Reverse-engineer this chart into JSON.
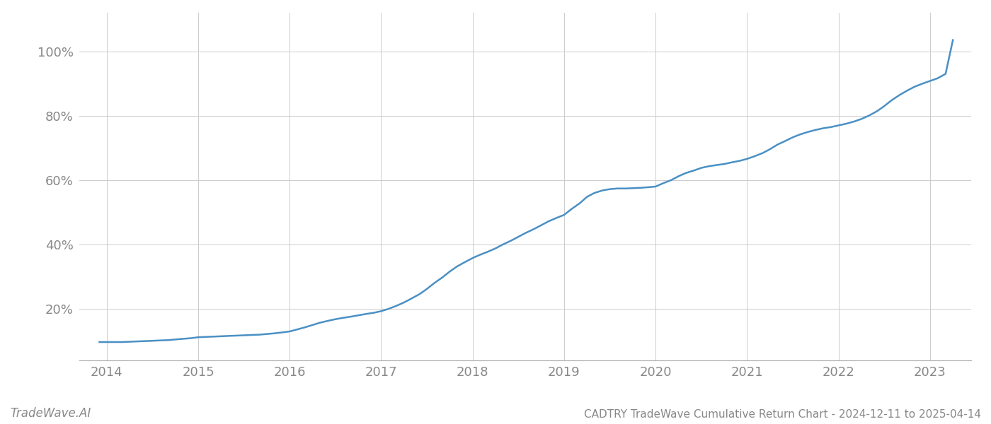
{
  "title": "CADTRY TradeWave Cumulative Return Chart - 2024-12-11 to 2025-04-14",
  "watermark": "TradeWave.AI",
  "line_color": "#4a90c4",
  "background_color": "#ffffff",
  "grid_color": "#cccccc",
  "axis_color": "#888888",
  "x_ticks": [
    2014,
    2015,
    2016,
    2017,
    2018,
    2019,
    2020,
    2021,
    2022,
    2023
  ],
  "y_ticks": [
    0.2,
    0.4,
    0.6,
    0.8,
    1.0
  ],
  "xlim": [
    2013.7,
    2023.45
  ],
  "ylim": [
    0.04,
    1.12
  ],
  "x_data": [
    2013.92,
    2014.0,
    2014.08,
    2014.17,
    2014.25,
    2014.33,
    2014.42,
    2014.5,
    2014.58,
    2014.67,
    2014.75,
    2014.83,
    2014.92,
    2015.0,
    2015.08,
    2015.17,
    2015.25,
    2015.33,
    2015.42,
    2015.5,
    2015.58,
    2015.67,
    2015.75,
    2015.83,
    2015.92,
    2016.0,
    2016.08,
    2016.17,
    2016.25,
    2016.33,
    2016.42,
    2016.5,
    2016.58,
    2016.67,
    2016.75,
    2016.83,
    2016.92,
    2017.0,
    2017.08,
    2017.17,
    2017.25,
    2017.33,
    2017.42,
    2017.5,
    2017.58,
    2017.67,
    2017.75,
    2017.83,
    2017.92,
    2018.0,
    2018.08,
    2018.17,
    2018.25,
    2018.33,
    2018.42,
    2018.5,
    2018.58,
    2018.67,
    2018.75,
    2018.83,
    2018.92,
    2019.0,
    2019.08,
    2019.17,
    2019.25,
    2019.33,
    2019.42,
    2019.5,
    2019.58,
    2019.67,
    2019.75,
    2019.83,
    2019.92,
    2020.0,
    2020.08,
    2020.17,
    2020.25,
    2020.33,
    2020.42,
    2020.5,
    2020.58,
    2020.67,
    2020.75,
    2020.83,
    2020.92,
    2021.0,
    2021.08,
    2021.17,
    2021.25,
    2021.33,
    2021.42,
    2021.5,
    2021.58,
    2021.67,
    2021.75,
    2021.83,
    2021.92,
    2022.0,
    2022.08,
    2022.17,
    2022.25,
    2022.33,
    2022.42,
    2022.5,
    2022.58,
    2022.67,
    2022.75,
    2022.83,
    2022.92,
    2023.0,
    2023.08,
    2023.17,
    2023.25
  ],
  "y_data": [
    0.097,
    0.097,
    0.097,
    0.097,
    0.098,
    0.099,
    0.1,
    0.101,
    0.102,
    0.103,
    0.105,
    0.107,
    0.109,
    0.112,
    0.113,
    0.114,
    0.115,
    0.116,
    0.117,
    0.118,
    0.119,
    0.12,
    0.122,
    0.124,
    0.127,
    0.13,
    0.136,
    0.143,
    0.15,
    0.157,
    0.163,
    0.168,
    0.172,
    0.176,
    0.18,
    0.184,
    0.188,
    0.193,
    0.2,
    0.21,
    0.22,
    0.232,
    0.246,
    0.262,
    0.28,
    0.298,
    0.316,
    0.332,
    0.346,
    0.358,
    0.368,
    0.378,
    0.388,
    0.4,
    0.412,
    0.424,
    0.436,
    0.448,
    0.46,
    0.472,
    0.483,
    0.492,
    0.51,
    0.528,
    0.548,
    0.56,
    0.568,
    0.572,
    0.574,
    0.574,
    0.575,
    0.576,
    0.578,
    0.58,
    0.59,
    0.6,
    0.612,
    0.622,
    0.63,
    0.638,
    0.643,
    0.647,
    0.65,
    0.655,
    0.66,
    0.666,
    0.674,
    0.684,
    0.696,
    0.71,
    0.722,
    0.733,
    0.742,
    0.75,
    0.756,
    0.761,
    0.765,
    0.77,
    0.775,
    0.782,
    0.79,
    0.8,
    0.814,
    0.83,
    0.848,
    0.865,
    0.878,
    0.89,
    0.9,
    0.908,
    0.916,
    0.93,
    1.035
  ],
  "title_fontsize": 11,
  "tick_fontsize": 13,
  "watermark_fontsize": 12,
  "line_width": 1.8
}
